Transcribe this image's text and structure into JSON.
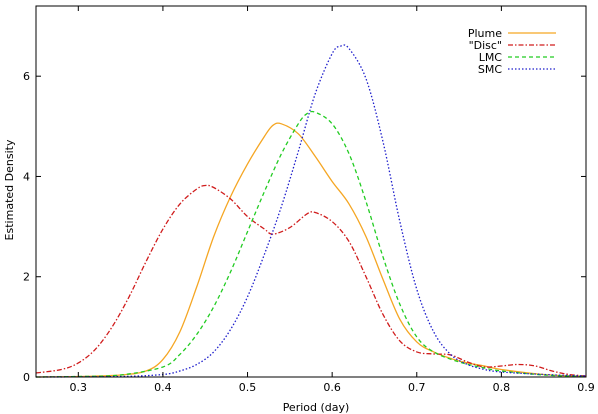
{
  "chart_data": {
    "type": "line",
    "title": "",
    "xlabel": "Period (day)",
    "ylabel": "Estimated Density",
    "xlim": [
      0.25,
      0.9
    ],
    "ylim": [
      0,
      7.4
    ],
    "xticks": [
      0.3,
      0.4,
      0.5,
      0.6,
      0.7,
      0.8,
      0.9
    ],
    "yticks": [
      0,
      2,
      4,
      6
    ],
    "grid": false,
    "legend_position": "top-right",
    "series": [
      {
        "name": "Plume",
        "color": "#f5a623",
        "dash": "solid",
        "points": [
          [
            0.25,
            0.0
          ],
          [
            0.3,
            0.01
          ],
          [
            0.35,
            0.04
          ],
          [
            0.38,
            0.12
          ],
          [
            0.4,
            0.35
          ],
          [
            0.42,
            0.9
          ],
          [
            0.44,
            1.8
          ],
          [
            0.46,
            2.8
          ],
          [
            0.48,
            3.6
          ],
          [
            0.5,
            4.25
          ],
          [
            0.52,
            4.8
          ],
          [
            0.53,
            5.02
          ],
          [
            0.54,
            5.05
          ],
          [
            0.56,
            4.85
          ],
          [
            0.58,
            4.4
          ],
          [
            0.6,
            3.9
          ],
          [
            0.62,
            3.45
          ],
          [
            0.64,
            2.8
          ],
          [
            0.66,
            1.95
          ],
          [
            0.68,
            1.15
          ],
          [
            0.7,
            0.7
          ],
          [
            0.72,
            0.5
          ],
          [
            0.75,
            0.32
          ],
          [
            0.78,
            0.22
          ],
          [
            0.8,
            0.15
          ],
          [
            0.85,
            0.05
          ],
          [
            0.9,
            0.01
          ]
        ]
      },
      {
        "name": "\"Disc\"",
        "color": "#d01c1c",
        "dash": "dash-dot",
        "points": [
          [
            0.25,
            0.08
          ],
          [
            0.28,
            0.15
          ],
          [
            0.3,
            0.28
          ],
          [
            0.32,
            0.55
          ],
          [
            0.34,
            1.0
          ],
          [
            0.36,
            1.6
          ],
          [
            0.38,
            2.3
          ],
          [
            0.4,
            2.95
          ],
          [
            0.42,
            3.45
          ],
          [
            0.44,
            3.75
          ],
          [
            0.45,
            3.82
          ],
          [
            0.46,
            3.78
          ],
          [
            0.48,
            3.55
          ],
          [
            0.5,
            3.2
          ],
          [
            0.52,
            2.95
          ],
          [
            0.53,
            2.85
          ],
          [
            0.55,
            2.98
          ],
          [
            0.57,
            3.25
          ],
          [
            0.58,
            3.28
          ],
          [
            0.6,
            3.1
          ],
          [
            0.62,
            2.7
          ],
          [
            0.64,
            2.0
          ],
          [
            0.66,
            1.25
          ],
          [
            0.68,
            0.72
          ],
          [
            0.7,
            0.5
          ],
          [
            0.72,
            0.46
          ],
          [
            0.74,
            0.44
          ],
          [
            0.76,
            0.3
          ],
          [
            0.78,
            0.2
          ],
          [
            0.8,
            0.22
          ],
          [
            0.82,
            0.25
          ],
          [
            0.84,
            0.22
          ],
          [
            0.86,
            0.12
          ],
          [
            0.88,
            0.05
          ],
          [
            0.9,
            0.02
          ]
        ]
      },
      {
        "name": "LMC",
        "color": "#22cc22",
        "dash": "dashed",
        "points": [
          [
            0.25,
            0.0
          ],
          [
            0.3,
            0.01
          ],
          [
            0.35,
            0.04
          ],
          [
            0.4,
            0.2
          ],
          [
            0.42,
            0.45
          ],
          [
            0.44,
            0.85
          ],
          [
            0.46,
            1.4
          ],
          [
            0.48,
            2.1
          ],
          [
            0.5,
            2.9
          ],
          [
            0.52,
            3.7
          ],
          [
            0.54,
            4.45
          ],
          [
            0.56,
            5.05
          ],
          [
            0.57,
            5.25
          ],
          [
            0.58,
            5.28
          ],
          [
            0.6,
            5.05
          ],
          [
            0.62,
            4.45
          ],
          [
            0.64,
            3.5
          ],
          [
            0.66,
            2.4
          ],
          [
            0.68,
            1.45
          ],
          [
            0.7,
            0.8
          ],
          [
            0.72,
            0.5
          ],
          [
            0.75,
            0.3
          ],
          [
            0.78,
            0.18
          ],
          [
            0.8,
            0.12
          ],
          [
            0.85,
            0.04
          ],
          [
            0.9,
            0.01
          ]
        ]
      },
      {
        "name": "SMC",
        "color": "#1f1fcc",
        "dash": "dotted",
        "points": [
          [
            0.25,
            0.0
          ],
          [
            0.35,
            0.01
          ],
          [
            0.4,
            0.05
          ],
          [
            0.42,
            0.12
          ],
          [
            0.44,
            0.25
          ],
          [
            0.46,
            0.5
          ],
          [
            0.48,
            0.95
          ],
          [
            0.5,
            1.6
          ],
          [
            0.52,
            2.45
          ],
          [
            0.54,
            3.4
          ],
          [
            0.56,
            4.5
          ],
          [
            0.58,
            5.65
          ],
          [
            0.6,
            6.45
          ],
          [
            0.61,
            6.6
          ],
          [
            0.62,
            6.55
          ],
          [
            0.64,
            5.95
          ],
          [
            0.66,
            4.7
          ],
          [
            0.68,
            3.1
          ],
          [
            0.7,
            1.75
          ],
          [
            0.72,
            0.9
          ],
          [
            0.74,
            0.45
          ],
          [
            0.76,
            0.25
          ],
          [
            0.78,
            0.15
          ],
          [
            0.8,
            0.1
          ],
          [
            0.85,
            0.05
          ],
          [
            0.9,
            0.02
          ]
        ]
      }
    ]
  }
}
